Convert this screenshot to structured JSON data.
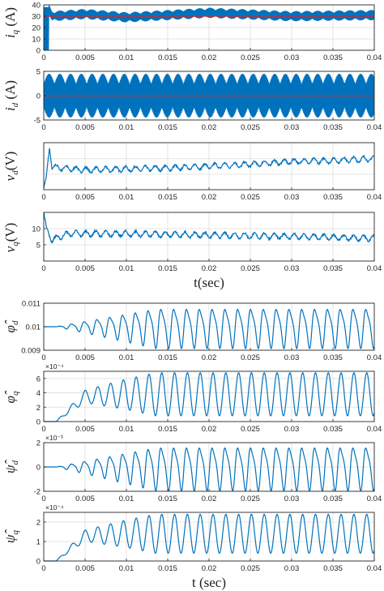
{
  "chart_data": [
    {
      "type": "line",
      "ylabel": "i_q (A)",
      "xlabel": "",
      "xlim": [
        0,
        0.04
      ],
      "ylim": [
        0,
        40
      ],
      "yticks": [
        0,
        10,
        20,
        30,
        40
      ],
      "ytick_labels": [
        "0",
        "10",
        "20",
        "30",
        "40"
      ],
      "x_ticks": [
        0,
        0.005,
        0.01,
        0.015,
        0.02,
        0.025,
        0.03,
        0.035,
        0.04
      ],
      "x_tick_labels": [
        "0",
        "0.005",
        "0.01",
        "0.015",
        "0.02",
        "0.025",
        "0.03",
        "0.035",
        "0.04"
      ],
      "grid": true,
      "reference_line": {
        "value": 30,
        "color": "#d62728"
      },
      "series": [
        {
          "x": [
            0,
            0.0005,
            0.001,
            0.005,
            0.01,
            0.02,
            0.03,
            0.04
          ],
          "y": [
            0,
            38,
            30,
            32,
            29,
            33,
            30,
            31
          ],
          "band_min": 23,
          "band_max": 37,
          "color": "#0072bd"
        }
      ]
    },
    {
      "type": "line",
      "ylabel": "i_d (A)",
      "xlabel": "",
      "xlim": [
        0,
        0.04
      ],
      "ylim": [
        -5,
        5
      ],
      "yticks": [
        -5,
        0,
        5
      ],
      "ytick_labels": [
        "-5",
        "0",
        "5"
      ],
      "x_ticks": [
        0,
        0.005,
        0.01,
        0.015,
        0.02,
        0.025,
        0.03,
        0.035,
        0.04
      ],
      "x_tick_labels": [
        "0",
        "0.005",
        "0.01",
        "0.015",
        "0.02",
        "0.025",
        "0.03",
        "0.035",
        "0.04"
      ],
      "grid": true,
      "reference_line": {
        "value": 0,
        "color": "#d62728"
      },
      "series": [
        {
          "x": [
            0,
            0.005,
            0.01,
            0.02,
            0.03,
            0.04
          ],
          "y": [
            0,
            0,
            0,
            0,
            0,
            0
          ],
          "band_min": -4.5,
          "band_max": 4.5,
          "color": "#0072bd"
        }
      ]
    },
    {
      "type": "line",
      "ylabel": "v_d(V)",
      "xlabel": "",
      "xlim": [
        0,
        0.04
      ],
      "ylim": [
        -2.1,
        0.4
      ],
      "yticks": [],
      "ytick_labels": [],
      "x_ticks": [
        0,
        0.005,
        0.01,
        0.015,
        0.02,
        0.025,
        0.03,
        0.035,
        0.04
      ],
      "x_tick_labels": [
        "0",
        "0.005",
        "0.01",
        "0.015",
        "0.02",
        "0.025",
        "0.03",
        "0.035",
        "0.04"
      ],
      "grid": true,
      "series": [
        {
          "x": [
            0,
            0.0003,
            0.0007,
            0.001,
            0.005,
            0.01,
            0.015,
            0.02,
            0.025,
            0.03,
            0.035,
            0.04
          ],
          "y": [
            -2.0,
            -1.6,
            0.2,
            -0.9,
            -1.05,
            -1.0,
            -0.95,
            -0.85,
            -0.75,
            -0.6,
            -0.55,
            -0.45
          ],
          "color": "#0072bd"
        }
      ]
    },
    {
      "type": "line",
      "ylabel": "v_q(V)",
      "xlabel": "t(sec)",
      "xlim": [
        0,
        0.04
      ],
      "ylim": [
        0,
        15
      ],
      "yticks": [
        5,
        10
      ],
      "ytick_labels": [
        "5",
        "10"
      ],
      "x_ticks": [
        0,
        0.005,
        0.01,
        0.015,
        0.02,
        0.025,
        0.03,
        0.035,
        0.04
      ],
      "x_tick_labels": [
        "0",
        "0.005",
        "0.01",
        "0.015",
        "0.02",
        "0.025",
        "0.03",
        "0.035",
        "0.04"
      ],
      "grid": true,
      "series": [
        {
          "x": [
            0,
            0.0003,
            0.001,
            0.003,
            0.01,
            0.02,
            0.03,
            0.04
          ],
          "y": [
            15,
            10,
            6.5,
            8.5,
            8.4,
            8.0,
            7.6,
            7.0
          ],
          "color": "#0072bd"
        }
      ]
    },
    {
      "type": "line",
      "ylabel": "φ̂_d",
      "xlabel": "",
      "xlim": [
        0,
        0.04
      ],
      "ylim": [
        0.009,
        0.011
      ],
      "yticks": [
        0.009,
        0.01,
        0.011
      ],
      "ytick_labels": [
        "0.009",
        "0.01",
        "0.011"
      ],
      "x_ticks": [
        0,
        0.005,
        0.01,
        0.015,
        0.02,
        0.025,
        0.03,
        0.035,
        0.04
      ],
      "x_tick_labels": [
        "0",
        "0.005",
        "0.01",
        "0.015",
        "0.02",
        "0.025",
        "0.03",
        "0.035",
        "0.04"
      ],
      "grid": true,
      "series": [
        {
          "x": [
            0,
            0.0015,
            0.005,
            0.01,
            0.02,
            0.03,
            0.04
          ],
          "y": [
            0.01,
            0.01,
            0.01,
            0.01,
            0.01,
            0.01,
            0.01
          ],
          "amplitude_max": 0.00085,
          "color": "#0072bd"
        }
      ]
    },
    {
      "type": "line",
      "ylabel": "φ̂_q",
      "xlabel": "",
      "xlim": [
        0,
        0.04
      ],
      "ylim": [
        0,
        7
      ],
      "y_multiplier": "×10⁻⁴",
      "yticks": [
        0,
        2,
        4,
        6
      ],
      "ytick_labels": [
        "0",
        "2",
        "4",
        "6"
      ],
      "x_ticks": [
        0,
        0.005,
        0.01,
        0.015,
        0.02,
        0.025,
        0.03,
        0.035,
        0.04
      ],
      "x_tick_labels": [
        "0",
        "0.005",
        "0.01",
        "0.015",
        "0.02",
        "0.025",
        "0.03",
        "0.035",
        "0.04"
      ],
      "grid": true,
      "series": [
        {
          "x": [
            0,
            0.0015,
            0.005,
            0.01,
            0.02,
            0.03,
            0.04
          ],
          "y": [
            0,
            0,
            3.5,
            3.8,
            3.8,
            3.8,
            3.8
          ],
          "amplitude_max": 3.0,
          "color": "#0072bd"
        }
      ]
    },
    {
      "type": "line",
      "ylabel": "ψ̂_d",
      "xlabel": "",
      "xlim": [
        0,
        0.04
      ],
      "ylim": [
        -2,
        2
      ],
      "y_multiplier": "×10⁻³",
      "yticks": [
        -2,
        0,
        2
      ],
      "ytick_labels": [
        "-2",
        "0",
        "2"
      ],
      "x_ticks": [
        0,
        0.005,
        0.01,
        0.015,
        0.02,
        0.025,
        0.03,
        0.035,
        0.04
      ],
      "x_tick_labels": [
        "0",
        "0.005",
        "0.01",
        "0.015",
        "0.02",
        "0.025",
        "0.03",
        "0.035",
        "0.04"
      ],
      "grid": true,
      "series": [
        {
          "x": [
            0,
            0.0015,
            0.005,
            0.01,
            0.02,
            0.03,
            0.04
          ],
          "y": [
            0,
            0,
            0,
            0,
            0,
            0,
            0
          ],
          "amplitude_max": 1.8,
          "color": "#0072bd"
        }
      ]
    },
    {
      "type": "line",
      "ylabel": "ψ̂_q",
      "xlabel": "t (sec)",
      "xlim": [
        0,
        0.04
      ],
      "ylim": [
        0,
        2.5
      ],
      "y_multiplier": "×10⁻⁴",
      "yticks": [
        0,
        1,
        2
      ],
      "ytick_labels": [
        "0",
        "1",
        "2"
      ],
      "x_ticks": [
        0,
        0.005,
        0.01,
        0.015,
        0.02,
        0.025,
        0.03,
        0.035,
        0.04
      ],
      "x_tick_labels": [
        "0",
        "0.005",
        "0.01",
        "0.015",
        "0.02",
        "0.025",
        "0.03",
        "0.035",
        "0.04"
      ],
      "grid": true,
      "series": [
        {
          "x": [
            0,
            0.0015,
            0.005,
            0.01,
            0.02,
            0.03,
            0.04
          ],
          "y": [
            0,
            0,
            1.3,
            1.4,
            1.4,
            1.4,
            1.4
          ],
          "amplitude_max": 1.0,
          "color": "#0072bd"
        }
      ]
    }
  ]
}
